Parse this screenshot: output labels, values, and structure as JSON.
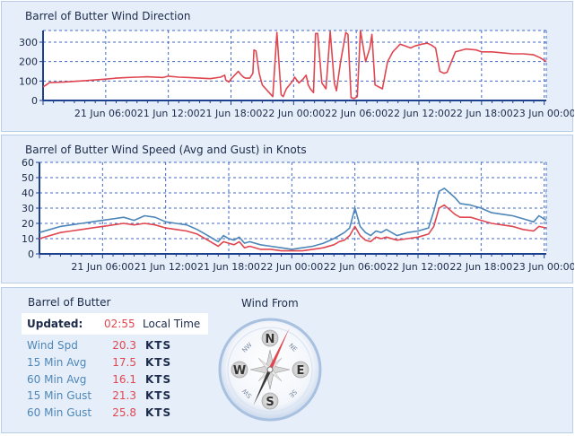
{
  "colors": {
    "grid": "#4169c8",
    "axis": "#1f3f8f",
    "direction": "#e04650",
    "avg": "#e04650",
    "gust": "#4d86b8",
    "panel": "#e6eff9"
  },
  "chart_data": [
    {
      "type": "line",
      "title": "Barrel of Butter Wind Direction",
      "xlabel": "",
      "ylabel": "",
      "ylim": [
        0,
        360
      ],
      "yticks": [
        "0",
        "100",
        "200",
        "300"
      ],
      "xticks": [
        "21 Jun 06:00",
        "21 Jun 12:00",
        "21 Jun 18:00",
        "22 Jun 00:00",
        "22 Jun 06:00",
        "22 Jun 12:00",
        "22 Jun 18:00",
        "23 Jun 00:00"
      ],
      "xrange_hours": [
        0,
        48.2
      ],
      "grid": true,
      "series": [
        {
          "color": "#e04650",
          "x": [
            0,
            0.3,
            0.6,
            2,
            4,
            6,
            7,
            8,
            9,
            10,
            11.5,
            12,
            13,
            14,
            15,
            16,
            17,
            17.4,
            17.5,
            17.8,
            18,
            18.7,
            19,
            19.2,
            19.4,
            19.8,
            20.1,
            20.2,
            20.4,
            20.7,
            21,
            21.5,
            22,
            22.4,
            22.8,
            23,
            23.3,
            23.6,
            23.9,
            24.1,
            24.5,
            24.9,
            25.2,
            25.4,
            25.6,
            25.9,
            26.1,
            26.3,
            26.7,
            27.1,
            27.5,
            27.9,
            28.1,
            28.5,
            29,
            29.2,
            29.5,
            29.8,
            30.1,
            30.4,
            30.9,
            31.3,
            31.5,
            31.8,
            32.5,
            33,
            33.5,
            34.2,
            34.7,
            35.2,
            35.6,
            36.3,
            36.8,
            37.2,
            37.6,
            38,
            38.4,
            38.7,
            39.5,
            40.5,
            41.5,
            42,
            43,
            44,
            45,
            46,
            47,
            47.6,
            48.2
          ],
          "y": [
            70,
            80,
            92,
            95,
            102,
            110,
            115,
            118,
            120,
            122,
            118,
            125,
            120,
            118,
            115,
            112,
            120,
            130,
            105,
            95,
            110,
            150,
            130,
            120,
            115,
            115,
            140,
            260,
            255,
            140,
            80,
            50,
            20,
            350,
            30,
            20,
            60,
            80,
            100,
            120,
            90,
            110,
            130,
            80,
            60,
            40,
            345,
            345,
            90,
            60,
            355,
            90,
            50,
            200,
            350,
            340,
            15,
            10,
            20,
            360,
            200,
            270,
            340,
            80,
            60,
            200,
            250,
            290,
            280,
            270,
            280,
            290,
            295,
            285,
            270,
            150,
            140,
            145,
            250,
            265,
            260,
            250,
            250,
            245,
            240,
            240,
            235,
            220,
            200
          ]
        }
      ]
    },
    {
      "type": "line",
      "title": "Barrel of Butter Wind Speed (Avg and Gust) in Knots",
      "xlabel": "",
      "ylabel": "",
      "ylim": [
        0,
        60
      ],
      "yticks": [
        "0",
        "10",
        "20",
        "30",
        "40",
        "50",
        "60"
      ],
      "xticks": [
        "21 Jun 06:00",
        "21 Jun 12:00",
        "21 Jun 18:00",
        "22 Jun 00:00",
        "22 Jun 06:00",
        "22 Jun 12:00",
        "22 Jun 18:00",
        "23 Jun 00:00"
      ],
      "xrange_hours": [
        0,
        48.2
      ],
      "grid": true,
      "series": [
        {
          "color": "#4d86b8",
          "x": [
            0,
            1,
            2,
            3,
            4,
            5,
            6,
            7,
            8,
            9,
            10,
            11,
            12,
            13,
            14,
            15,
            16,
            16.5,
            17,
            17.5,
            18,
            18.5,
            19,
            19.5,
            20,
            21,
            22,
            23,
            24,
            25,
            26,
            27,
            28,
            28.5,
            29,
            29.5,
            30,
            30.5,
            31,
            31.5,
            32,
            32.5,
            33,
            34,
            35,
            36,
            37,
            37.5,
            38,
            38.5,
            39,
            39.5,
            40,
            41,
            42,
            43,
            44,
            45,
            46,
            47,
            47.5,
            48.2
          ],
          "y": [
            14,
            16,
            18,
            19,
            20,
            21,
            22,
            23,
            24,
            22,
            25,
            24,
            21,
            20,
            19,
            16,
            12,
            10,
            8,
            12,
            10,
            9,
            11,
            7,
            8,
            6,
            5,
            4,
            3,
            4,
            5,
            7,
            10,
            12,
            14,
            17,
            30,
            18,
            14,
            12,
            15,
            14,
            16,
            12,
            14,
            15,
            17,
            28,
            41,
            43,
            40,
            37,
            33,
            32,
            30,
            27,
            26,
            25,
            23,
            21,
            25,
            22
          ]
        },
        {
          "color": "#e04650",
          "x": [
            0,
            1,
            2,
            3,
            4,
            5,
            6,
            7,
            8,
            9,
            10,
            11,
            12,
            13,
            14,
            15,
            16,
            16.5,
            17,
            17.5,
            18,
            18.5,
            19,
            19.5,
            20,
            21,
            22,
            23,
            24,
            25,
            26,
            27,
            28,
            28.5,
            29,
            29.5,
            30,
            30.5,
            31,
            31.5,
            32,
            32.5,
            33,
            34,
            35,
            36,
            37,
            37.5,
            38,
            38.5,
            39,
            39.5,
            40,
            41,
            42,
            43,
            44,
            45,
            46,
            47,
            47.5,
            48.2
          ],
          "y": [
            10,
            12,
            14,
            15,
            16,
            17,
            18,
            19,
            20,
            19,
            20,
            19,
            17,
            16,
            15,
            13,
            9,
            7,
            5,
            8,
            7,
            6,
            8,
            4,
            5,
            3,
            3,
            2,
            2,
            2,
            3,
            4,
            6,
            8,
            9,
            12,
            18,
            12,
            9,
            8,
            11,
            10,
            11,
            9,
            10,
            11,
            13,
            18,
            30,
            32,
            29,
            26,
            24,
            24,
            22,
            20,
            19,
            18,
            16,
            15,
            18,
            17
          ]
        }
      ]
    }
  ],
  "info": {
    "station": "Barrel of Butter",
    "updated_label": "Updated:",
    "updated_time": "02:55",
    "updated_zone": "Local Time",
    "rows": [
      {
        "label": "Wind Spd",
        "value": "20.3",
        "unit": "KTS"
      },
      {
        "label": "15 Min Avg",
        "value": "17.5",
        "unit": "KTS"
      },
      {
        "label": "60 Min Avg",
        "value": "16.1",
        "unit": "KTS"
      },
      {
        "label": "15 Min Gust",
        "value": "21.3",
        "unit": "KTS"
      },
      {
        "label": "60 Min Gust",
        "value": "25.8",
        "unit": "KTS"
      }
    ]
  },
  "compass": {
    "title": "Wind From",
    "n": "N",
    "s": "S",
    "e": "E",
    "w": "W",
    "ne": "NE",
    "nw": "NW",
    "se": "SE",
    "sw": "SW",
    "direction_deg": 205
  }
}
